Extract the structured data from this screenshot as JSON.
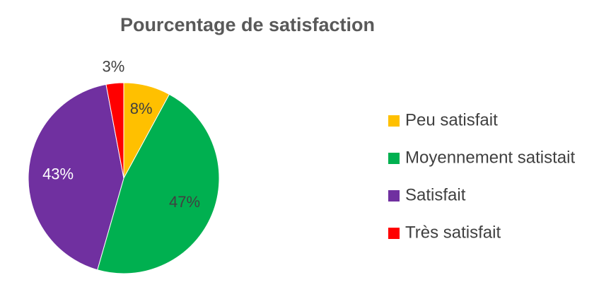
{
  "chart_data": {
    "type": "pie",
    "title": "Pourcentage de satisfaction",
    "categories": [
      "Peu satisfait",
      "Moyennement satistait",
      "Satisfait",
      "Très satisfait"
    ],
    "values": [
      8,
      47,
      43,
      3
    ],
    "value_labels": [
      "8%",
      "47%",
      "43%",
      "3%"
    ],
    "colors": [
      "#FFC000",
      "#00B050",
      "#7030A0",
      "#FF0000"
    ],
    "legend": "right"
  }
}
